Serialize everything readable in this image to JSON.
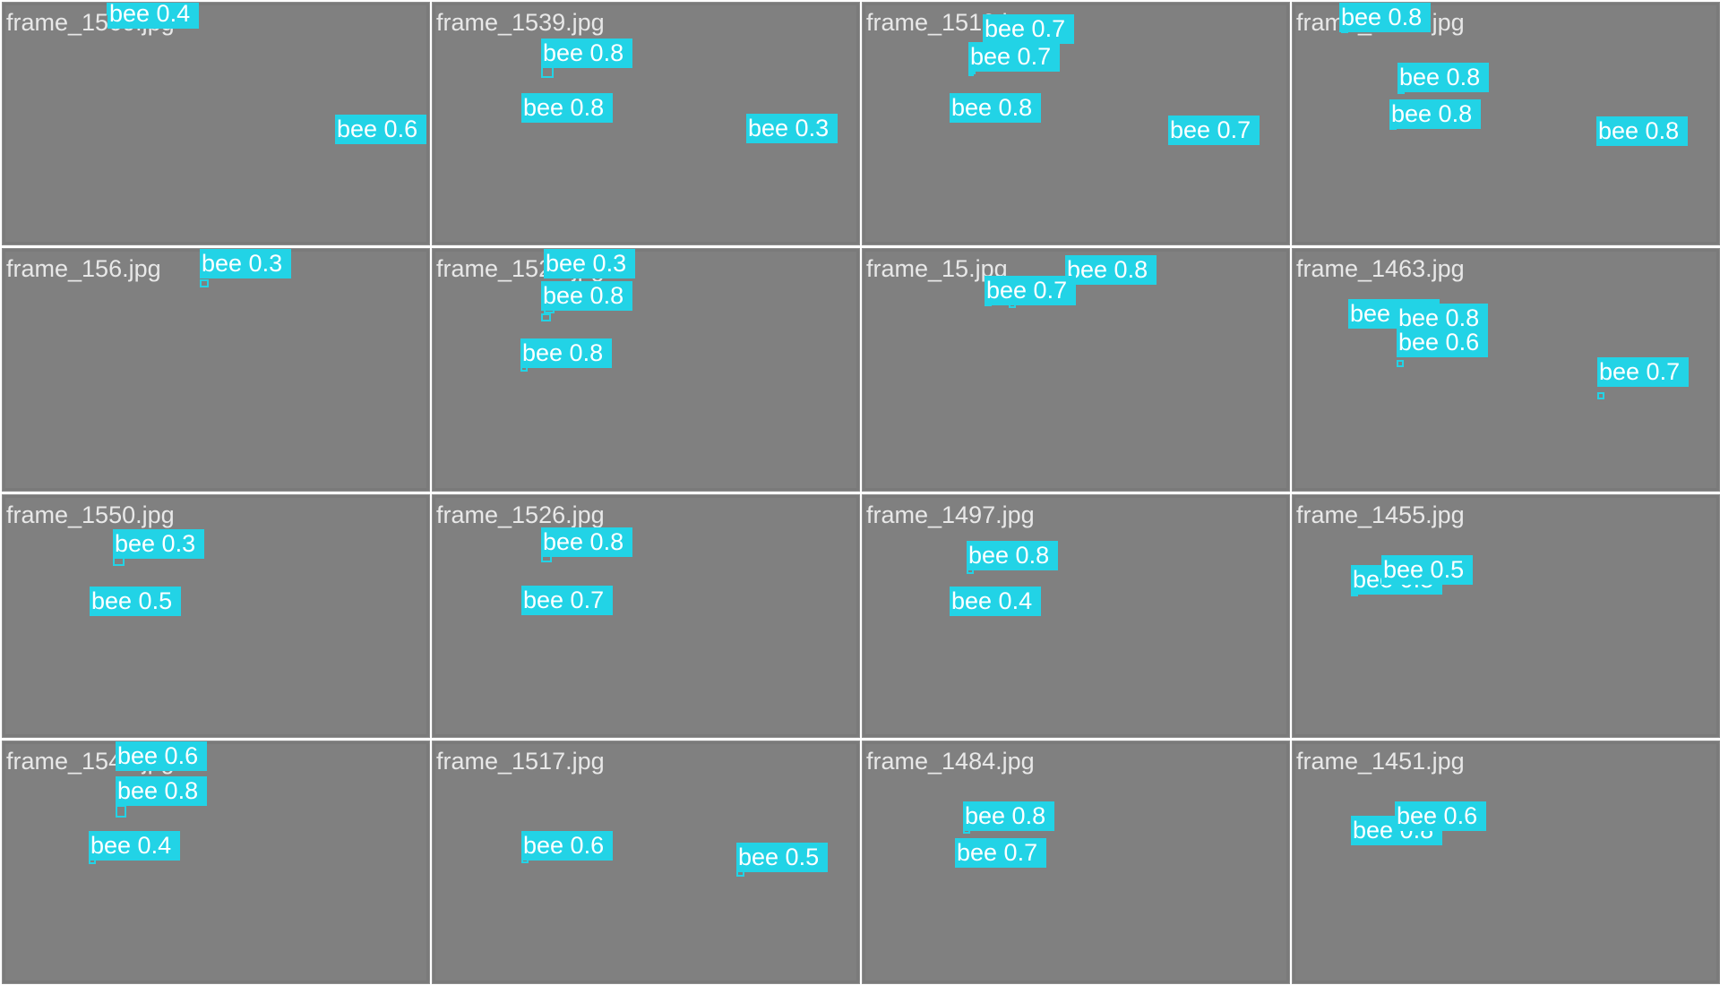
{
  "tiles": [
    {
      "filename": "frame_1560.jpg",
      "detections": [
        {
          "label": "bee 0.4",
          "class": "bee",
          "confidence": 0.4
        },
        {
          "label": "bee 0.6",
          "class": "bee",
          "confidence": 0.6
        }
      ]
    },
    {
      "filename": "frame_1539.jpg",
      "detections": [
        {
          "label": "bee 0.8",
          "class": "bee",
          "confidence": 0.8
        },
        {
          "label": "bee 0.8",
          "class": "bee",
          "confidence": 0.8
        },
        {
          "label": "bee 0.3",
          "class": "bee",
          "confidence": 0.3
        }
      ]
    },
    {
      "filename": "frame_1510.jpg",
      "detections": [
        {
          "label": "bee 0.7",
          "class": "bee",
          "confidence": 0.7
        },
        {
          "label": "bee 0.7",
          "class": "bee",
          "confidence": 0.7
        },
        {
          "label": "bee 0.8",
          "class": "bee",
          "confidence": 0.8
        },
        {
          "label": "bee 0.7",
          "class": "bee",
          "confidence": 0.7
        }
      ]
    },
    {
      "filename": "frame_1476.jpg",
      "detections": [
        {
          "label": "bee 0.8",
          "class": "bee",
          "confidence": 0.8
        },
        {
          "label": "bee 0.8",
          "class": "bee",
          "confidence": 0.8
        },
        {
          "label": "bee 0.8",
          "class": "bee",
          "confidence": 0.8
        },
        {
          "label": "bee 0.8",
          "class": "bee",
          "confidence": 0.8
        }
      ]
    },
    {
      "filename": "frame_156.jpg",
      "detections": [
        {
          "label": "bee 0.3",
          "class": "bee",
          "confidence": 0.3
        }
      ]
    },
    {
      "filename": "frame_1529.jpg",
      "detections": [
        {
          "label": "bee 0.3",
          "class": "bee",
          "confidence": 0.3
        },
        {
          "label": "bee 0.8",
          "class": "bee",
          "confidence": 0.8
        },
        {
          "label": "bee 0.8",
          "class": "bee",
          "confidence": 0.8
        }
      ]
    },
    {
      "filename": "frame_15.jpg",
      "detections": [
        {
          "label": "bee 0.8",
          "class": "bee",
          "confidence": 0.8
        },
        {
          "label": "bee 0.7",
          "class": "bee",
          "confidence": 0.7
        }
      ]
    },
    {
      "filename": "frame_1463.jpg",
      "detections": [
        {
          "label": "bee 0.8",
          "class": "bee",
          "confidence": 0.8
        },
        {
          "label": "bee 0.8",
          "class": "bee",
          "confidence": 0.8
        },
        {
          "label": "bee 0.6",
          "class": "bee",
          "confidence": 0.6
        },
        {
          "label": "bee 0.7",
          "class": "bee",
          "confidence": 0.7
        }
      ]
    },
    {
      "filename": "frame_1550.jpg",
      "detections": [
        {
          "label": "bee 0.3",
          "class": "bee",
          "confidence": 0.3
        },
        {
          "label": "bee 0.5",
          "class": "bee",
          "confidence": 0.5
        }
      ]
    },
    {
      "filename": "frame_1526.jpg",
      "detections": [
        {
          "label": "bee 0.8",
          "class": "bee",
          "confidence": 0.8
        },
        {
          "label": "bee 0.7",
          "class": "bee",
          "confidence": 0.7
        }
      ]
    },
    {
      "filename": "frame_1497.jpg",
      "detections": [
        {
          "label": "bee 0.8",
          "class": "bee",
          "confidence": 0.8
        },
        {
          "label": "bee 0.4",
          "class": "bee",
          "confidence": 0.4
        }
      ]
    },
    {
      "filename": "frame_1455.jpg",
      "detections": [
        {
          "label": "bee 0.8",
          "class": "bee",
          "confidence": 0.8
        },
        {
          "label": "bee 0.5",
          "class": "bee",
          "confidence": 0.5
        }
      ]
    },
    {
      "filename": "frame_1543.jpg",
      "detections": [
        {
          "label": "bee 0.6",
          "class": "bee",
          "confidence": 0.6
        },
        {
          "label": "bee 0.8",
          "class": "bee",
          "confidence": 0.8
        },
        {
          "label": "bee 0.4",
          "class": "bee",
          "confidence": 0.4
        }
      ]
    },
    {
      "filename": "frame_1517.jpg",
      "detections": [
        {
          "label": "bee 0.6",
          "class": "bee",
          "confidence": 0.6
        },
        {
          "label": "bee 0.5",
          "class": "bee",
          "confidence": 0.5
        }
      ]
    },
    {
      "filename": "frame_1484.jpg",
      "detections": [
        {
          "label": "bee 0.8",
          "class": "bee",
          "confidence": 0.8
        },
        {
          "label": "bee 0.7",
          "class": "bee",
          "confidence": 0.7
        }
      ]
    },
    {
      "filename": "frame_1451.jpg",
      "detections": [
        {
          "label": "bee 0.8",
          "class": "bee",
          "confidence": 0.8
        },
        {
          "label": "bee 0.6",
          "class": "bee",
          "confidence": 0.6
        }
      ]
    }
  ],
  "colors": {
    "detection": "#22d3e6",
    "tile_background": "#808080",
    "filename_text": "#e8e8e8"
  }
}
